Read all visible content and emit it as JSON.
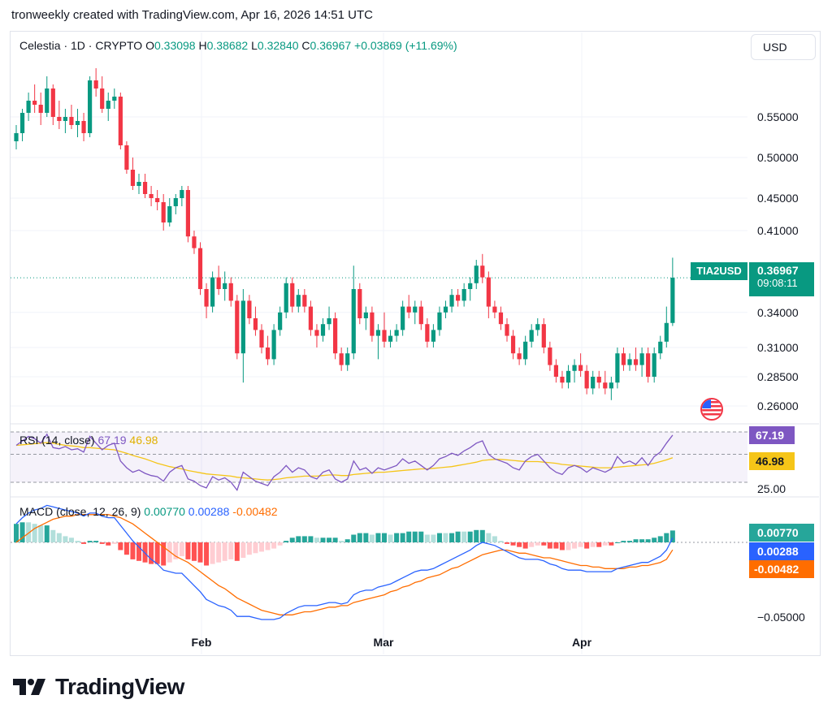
{
  "header": {
    "caption": "tronweekly created with TradingView.com, Apr 16, 2026 14:51 UTC"
  },
  "ohlc": {
    "title": "Celestia · 1D · CRYPTO",
    "o_label": "O",
    "o": "0.33098",
    "h_label": "H",
    "h": "0.38682",
    "l_label": "L",
    "l": "0.32840",
    "c_label": "C",
    "c": "0.36967",
    "change": "+0.03869 (+11.69%)"
  },
  "currency": "USD",
  "price_badge": {
    "symbol": "TIA2USD",
    "price": "0.36967",
    "countdown": "09:08:11"
  },
  "rsi": {
    "label": "RSI (14, close)",
    "value": "67.19",
    "ma_value": "46.98",
    "level_label": "25.00"
  },
  "macd": {
    "label": "MACD (close, 12, 26, 9)",
    "hist": "0.00770",
    "macd": "0.00288",
    "signal": "-0.00482",
    "axis_label": "−0.05000"
  },
  "brand": {
    "name": "TradingView"
  },
  "colors": {
    "up": "#089981",
    "down": "#f23645",
    "rsi": "#7e57c2",
    "rsi_ma": "#f5c518",
    "macd": "#2962ff",
    "signal": "#ff6d00",
    "hist_up": "#26a69a",
    "hist_up_light": "#b2dfdb",
    "hist_down": "#ff5252",
    "hist_down_light": "#ffcdd2"
  },
  "chart_data": {
    "type": "candlestick",
    "price_axis_ticks": [
      "0.55000",
      "0.50000",
      "0.45000",
      "0.41000",
      "0.34000",
      "0.31000",
      "0.28500",
      "0.26000"
    ],
    "x_tick_labels": [
      "Feb",
      "Mar",
      "Apr"
    ],
    "ohlc": [
      [
        0.52,
        0.54,
        0.51,
        0.53
      ],
      [
        0.53,
        0.56,
        0.52,
        0.555
      ],
      [
        0.555,
        0.58,
        0.545,
        0.57
      ],
      [
        0.57,
        0.59,
        0.555,
        0.565
      ],
      [
        0.565,
        0.58,
        0.54,
        0.555
      ],
      [
        0.555,
        0.6,
        0.55,
        0.585
      ],
      [
        0.585,
        0.59,
        0.54,
        0.55
      ],
      [
        0.55,
        0.57,
        0.535,
        0.545
      ],
      [
        0.545,
        0.56,
        0.53,
        0.55
      ],
      [
        0.55,
        0.565,
        0.535,
        0.54
      ],
      [
        0.54,
        0.56,
        0.525,
        0.545
      ],
      [
        0.545,
        0.555,
        0.52,
        0.53
      ],
      [
        0.53,
        0.6,
        0.525,
        0.595
      ],
      [
        0.595,
        0.61,
        0.575,
        0.585
      ],
      [
        0.585,
        0.6,
        0.555,
        0.56
      ],
      [
        0.56,
        0.58,
        0.545,
        0.57
      ],
      [
        0.57,
        0.585,
        0.56,
        0.575
      ],
      [
        0.575,
        0.58,
        0.51,
        0.515
      ],
      [
        0.515,
        0.52,
        0.48,
        0.485
      ],
      [
        0.485,
        0.5,
        0.46,
        0.465
      ],
      [
        0.465,
        0.48,
        0.455,
        0.47
      ],
      [
        0.47,
        0.48,
        0.45,
        0.455
      ],
      [
        0.455,
        0.465,
        0.44,
        0.45
      ],
      [
        0.45,
        0.46,
        0.435,
        0.445
      ],
      [
        0.445,
        0.455,
        0.41,
        0.42
      ],
      [
        0.42,
        0.45,
        0.415,
        0.44
      ],
      [
        0.44,
        0.455,
        0.43,
        0.45
      ],
      [
        0.45,
        0.465,
        0.44,
        0.46
      ],
      [
        0.46,
        0.465,
        0.4,
        0.405
      ],
      [
        0.405,
        0.41,
        0.39,
        0.395
      ],
      [
        0.395,
        0.4,
        0.355,
        0.36
      ],
      [
        0.36,
        0.365,
        0.335,
        0.345
      ],
      [
        0.345,
        0.375,
        0.34,
        0.37
      ],
      [
        0.37,
        0.38,
        0.355,
        0.36
      ],
      [
        0.36,
        0.375,
        0.35,
        0.365
      ],
      [
        0.365,
        0.37,
        0.345,
        0.35
      ],
      [
        0.35,
        0.355,
        0.3,
        0.305
      ],
      [
        0.305,
        0.36,
        0.28,
        0.35
      ],
      [
        0.35,
        0.355,
        0.33,
        0.335
      ],
      [
        0.335,
        0.345,
        0.32,
        0.325
      ],
      [
        0.325,
        0.33,
        0.305,
        0.31
      ],
      [
        0.31,
        0.32,
        0.295,
        0.3
      ],
      [
        0.3,
        0.33,
        0.295,
        0.325
      ],
      [
        0.325,
        0.345,
        0.32,
        0.34
      ],
      [
        0.34,
        0.37,
        0.335,
        0.365
      ],
      [
        0.365,
        0.37,
        0.34,
        0.345
      ],
      [
        0.345,
        0.36,
        0.34,
        0.355
      ],
      [
        0.355,
        0.36,
        0.34,
        0.345
      ],
      [
        0.345,
        0.35,
        0.32,
        0.325
      ],
      [
        0.325,
        0.33,
        0.31,
        0.32
      ],
      [
        0.32,
        0.335,
        0.315,
        0.33
      ],
      [
        0.33,
        0.345,
        0.325,
        0.335
      ],
      [
        0.335,
        0.34,
        0.3,
        0.305
      ],
      [
        0.305,
        0.31,
        0.29,
        0.295
      ],
      [
        0.295,
        0.31,
        0.29,
        0.305
      ],
      [
        0.305,
        0.38,
        0.3,
        0.36
      ],
      [
        0.36,
        0.365,
        0.33,
        0.335
      ],
      [
        0.335,
        0.345,
        0.325,
        0.34
      ],
      [
        0.34,
        0.345,
        0.315,
        0.32
      ],
      [
        0.32,
        0.33,
        0.3,
        0.325
      ],
      [
        0.325,
        0.34,
        0.31,
        0.315
      ],
      [
        0.315,
        0.325,
        0.31,
        0.32
      ],
      [
        0.32,
        0.33,
        0.315,
        0.325
      ],
      [
        0.325,
        0.35,
        0.32,
        0.345
      ],
      [
        0.345,
        0.355,
        0.335,
        0.34
      ],
      [
        0.34,
        0.35,
        0.33,
        0.345
      ],
      [
        0.345,
        0.35,
        0.325,
        0.33
      ],
      [
        0.33,
        0.335,
        0.31,
        0.315
      ],
      [
        0.315,
        0.33,
        0.31,
        0.325
      ],
      [
        0.325,
        0.345,
        0.32,
        0.34
      ],
      [
        0.34,
        0.35,
        0.335,
        0.345
      ],
      [
        0.345,
        0.36,
        0.34,
        0.355
      ],
      [
        0.355,
        0.36,
        0.345,
        0.35
      ],
      [
        0.35,
        0.365,
        0.345,
        0.36
      ],
      [
        0.36,
        0.37,
        0.35,
        0.365
      ],
      [
        0.365,
        0.385,
        0.36,
        0.38
      ],
      [
        0.38,
        0.39,
        0.365,
        0.37
      ],
      [
        0.37,
        0.375,
        0.335,
        0.345
      ],
      [
        0.345,
        0.35,
        0.335,
        0.34
      ],
      [
        0.34,
        0.345,
        0.325,
        0.33
      ],
      [
        0.33,
        0.335,
        0.315,
        0.32
      ],
      [
        0.32,
        0.325,
        0.3,
        0.305
      ],
      [
        0.305,
        0.31,
        0.295,
        0.3
      ],
      [
        0.3,
        0.32,
        0.295,
        0.315
      ],
      [
        0.315,
        0.33,
        0.31,
        0.325
      ],
      [
        0.325,
        0.335,
        0.32,
        0.33
      ],
      [
        0.33,
        0.335,
        0.305,
        0.31
      ],
      [
        0.31,
        0.315,
        0.29,
        0.295
      ],
      [
        0.295,
        0.3,
        0.28,
        0.285
      ],
      [
        0.285,
        0.29,
        0.275,
        0.28
      ],
      [
        0.28,
        0.295,
        0.275,
        0.29
      ],
      [
        0.29,
        0.3,
        0.28,
        0.295
      ],
      [
        0.295,
        0.305,
        0.285,
        0.29
      ],
      [
        0.29,
        0.295,
        0.27,
        0.275
      ],
      [
        0.275,
        0.29,
        0.27,
        0.285
      ],
      [
        0.285,
        0.29,
        0.275,
        0.28
      ],
      [
        0.28,
        0.29,
        0.27,
        0.275
      ],
      [
        0.275,
        0.285,
        0.265,
        0.28
      ],
      [
        0.28,
        0.31,
        0.275,
        0.305
      ],
      [
        0.305,
        0.31,
        0.29,
        0.295
      ],
      [
        0.295,
        0.305,
        0.29,
        0.3
      ],
      [
        0.3,
        0.31,
        0.29,
        0.295
      ],
      [
        0.295,
        0.31,
        0.285,
        0.305
      ],
      [
        0.305,
        0.31,
        0.28,
        0.285
      ],
      [
        0.285,
        0.31,
        0.28,
        0.305
      ],
      [
        0.305,
        0.32,
        0.3,
        0.315
      ],
      [
        0.315,
        0.345,
        0.31,
        0.33098
      ],
      [
        0.33098,
        0.38682,
        0.3284,
        0.36967
      ]
    ],
    "rsi": [
      58,
      62,
      66,
      64,
      60,
      68,
      56,
      55,
      57,
      54,
      55,
      52,
      66,
      60,
      54,
      58,
      60,
      44,
      38,
      34,
      36,
      33,
      31,
      30,
      26,
      34,
      38,
      40,
      28,
      26,
      22,
      20,
      30,
      27,
      29,
      25,
      18,
      34,
      30,
      26,
      24,
      22,
      30,
      34,
      40,
      34,
      38,
      36,
      30,
      28,
      34,
      36,
      28,
      25,
      28,
      44,
      36,
      38,
      33,
      38,
      36,
      38,
      40,
      46,
      42,
      44,
      40,
      36,
      40,
      46,
      48,
      51,
      49,
      53,
      56,
      60,
      62,
      50,
      46,
      44,
      42,
      38,
      36,
      44,
      48,
      50,
      44,
      38,
      34,
      32,
      38,
      40,
      38,
      34,
      38,
      36,
      34,
      37,
      48,
      42,
      44,
      41,
      47,
      40,
      48,
      52,
      60,
      67.19
    ],
    "rsi_ma": [
      58,
      58.5,
      59,
      59.5,
      60,
      60.5,
      60,
      59,
      58,
      57.5,
      57,
      56,
      56,
      55.5,
      55,
      54.5,
      54,
      52.5,
      51,
      49,
      47.5,
      46,
      44,
      42,
      40.5,
      39,
      38,
      37,
      35.5,
      34.5,
      33.5,
      32.5,
      32,
      31.5,
      31,
      30.5,
      29.5,
      29,
      28.5,
      28,
      27.5,
      27,
      27.5,
      28,
      29,
      29.5,
      30,
      30.5,
      30.5,
      30.5,
      31,
      31.5,
      31.5,
      31,
      31,
      32,
      32.5,
      33,
      33.5,
      34,
      34,
      34.5,
      35,
      35.5,
      36,
      36.5,
      37,
      37,
      37.5,
      38,
      38.5,
      39,
      40,
      41,
      42,
      43,
      44.5,
      45,
      45.5,
      45.5,
      45,
      44.5,
      44,
      43.5,
      43.5,
      43.5,
      43,
      42.5,
      42,
      41,
      40.5,
      40,
      39.5,
      39,
      38.5,
      38,
      38,
      38,
      38.5,
      39,
      39.5,
      40,
      40.5,
      41,
      42,
      43.5,
      45,
      46.98
    ],
    "macd_line": [
      0.012,
      0.016,
      0.019,
      0.021,
      0.022,
      0.024,
      0.023,
      0.022,
      0.021,
      0.02,
      0.019,
      0.017,
      0.019,
      0.019,
      0.017,
      0.016,
      0.016,
      0.011,
      0.006,
      0.001,
      -0.003,
      -0.007,
      -0.011,
      -0.014,
      -0.018,
      -0.019,
      -0.02,
      -0.02,
      -0.024,
      -0.028,
      -0.032,
      -0.037,
      -0.039,
      -0.041,
      -0.042,
      -0.044,
      -0.048,
      -0.048,
      -0.048,
      -0.049,
      -0.05,
      -0.05,
      -0.05,
      -0.049,
      -0.046,
      -0.044,
      -0.042,
      -0.041,
      -0.041,
      -0.041,
      -0.04,
      -0.039,
      -0.039,
      -0.04,
      -0.039,
      -0.034,
      -0.032,
      -0.031,
      -0.031,
      -0.029,
      -0.028,
      -0.027,
      -0.025,
      -0.023,
      -0.021,
      -0.019,
      -0.018,
      -0.018,
      -0.017,
      -0.015,
      -0.013,
      -0.011,
      -0.009,
      -0.007,
      -0.005,
      -0.002,
      0.0,
      -0.001,
      -0.002,
      -0.004,
      -0.006,
      -0.008,
      -0.01,
      -0.011,
      -0.011,
      -0.011,
      -0.012,
      -0.014,
      -0.015,
      -0.017,
      -0.018,
      -0.018,
      -0.018,
      -0.019,
      -0.019,
      -0.019,
      -0.019,
      -0.019,
      -0.017,
      -0.016,
      -0.015,
      -0.014,
      -0.013,
      -0.013,
      -0.011,
      -0.009,
      -0.005,
      0.00288
    ],
    "signal_line": [
      0.0,
      0.003,
      0.006,
      0.009,
      0.011,
      0.013,
      0.015,
      0.016,
      0.017,
      0.017,
      0.018,
      0.018,
      0.018,
      0.018,
      0.018,
      0.018,
      0.017,
      0.016,
      0.014,
      0.012,
      0.009,
      0.006,
      0.003,
      0.0,
      -0.003,
      -0.006,
      -0.009,
      -0.011,
      -0.013,
      -0.016,
      -0.019,
      -0.022,
      -0.025,
      -0.028,
      -0.03,
      -0.033,
      -0.036,
      -0.038,
      -0.04,
      -0.042,
      -0.044,
      -0.045,
      -0.046,
      -0.047,
      -0.047,
      -0.047,
      -0.046,
      -0.045,
      -0.045,
      -0.044,
      -0.043,
      -0.042,
      -0.042,
      -0.041,
      -0.041,
      -0.039,
      -0.038,
      -0.037,
      -0.036,
      -0.035,
      -0.034,
      -0.032,
      -0.031,
      -0.029,
      -0.028,
      -0.026,
      -0.025,
      -0.023,
      -0.022,
      -0.021,
      -0.019,
      -0.017,
      -0.016,
      -0.014,
      -0.012,
      -0.01,
      -0.008,
      -0.007,
      -0.006,
      -0.005,
      -0.005,
      -0.006,
      -0.007,
      -0.007,
      -0.008,
      -0.009,
      -0.01,
      -0.01,
      -0.011,
      -0.012,
      -0.013,
      -0.014,
      -0.015,
      -0.015,
      -0.016,
      -0.016,
      -0.017,
      -0.017,
      -0.017,
      -0.017,
      -0.016,
      -0.016,
      -0.015,
      -0.015,
      -0.014,
      -0.013,
      -0.011,
      -0.00482
    ]
  }
}
